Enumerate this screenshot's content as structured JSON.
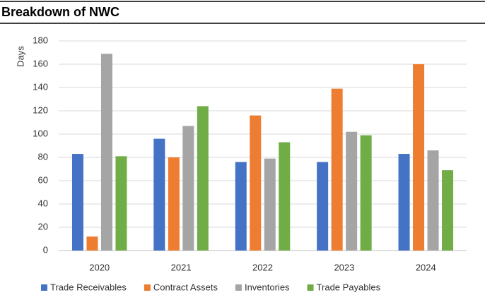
{
  "chart_data": {
    "type": "bar",
    "title": "Breakdown of NWC",
    "y_label": "Days",
    "categories": [
      "2020",
      "2021",
      "2022",
      "2023",
      "2024"
    ],
    "series": [
      {
        "name": "Trade Receivables",
        "color": "#4472c4",
        "values": [
          83,
          96,
          76,
          76,
          83
        ]
      },
      {
        "name": "Contract Assets",
        "color": "#ed7d31",
        "values": [
          12,
          80,
          116,
          139,
          160
        ]
      },
      {
        "name": "Inventories",
        "color": "#a5a5a5",
        "values": [
          169,
          107,
          79,
          102,
          86
        ]
      },
      {
        "name": "Trade Payables",
        "color": "#70ad47",
        "values": [
          81,
          124,
          93,
          99,
          69
        ]
      }
    ],
    "ylim": [
      0,
      180
    ],
    "yticks": [
      0,
      20,
      40,
      60,
      80,
      100,
      120,
      140,
      160,
      180
    ],
    "grid": true,
    "legend": "bottom"
  }
}
